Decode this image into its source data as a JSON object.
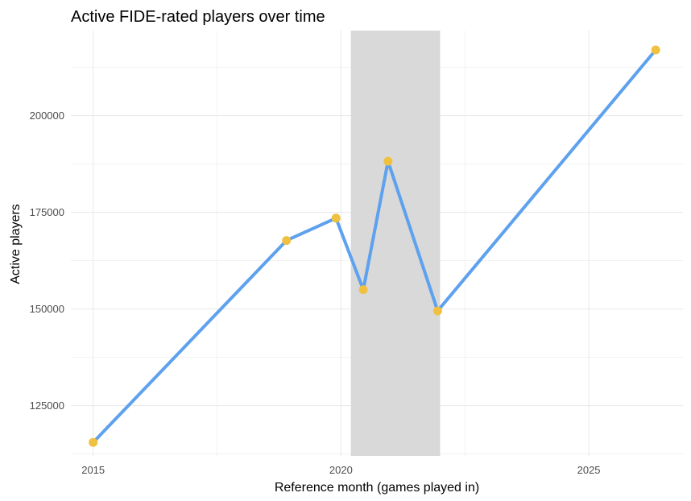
{
  "chart_data": {
    "type": "line",
    "title": "Active FIDE-rated players over time",
    "xlabel": "Reference month (games played in)",
    "ylabel": "Active players",
    "x_ticks": [
      "2015",
      "2020",
      "2025"
    ],
    "y_ticks": [
      "125000",
      "150000",
      "175000",
      "200000"
    ],
    "xlim": [
      2014.55,
      2026.9
    ],
    "ylim": [
      112000,
      222000
    ],
    "grid": true,
    "legend": "none",
    "shaded_interval": {
      "x_start": 2020.2,
      "x_end": 2022.0
    },
    "series": [
      {
        "x": [
          2015.0,
          2018.9,
          2019.9,
          2020.45,
          2020.95,
          2021.95,
          2026.35
        ],
        "y": [
          115500,
          167700,
          173500,
          155000,
          188200,
          149500,
          217000
        ]
      }
    ],
    "colors": {
      "line": "#5ea1ee",
      "point": "#f0c040",
      "shade": "#d9d9d9",
      "grid": "#ebebeb"
    }
  }
}
